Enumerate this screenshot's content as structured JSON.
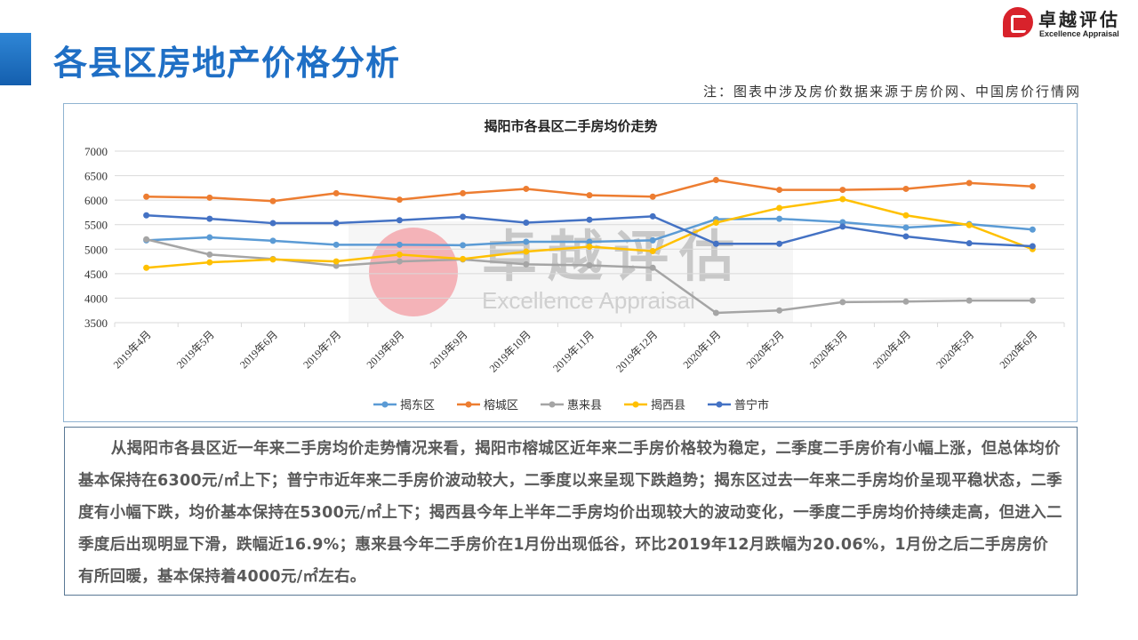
{
  "header": {
    "title": "各县区房地产价格分析",
    "note": "注：图表中涉及房价数据来源于房价网、中国房价行情网",
    "logo_cn": "卓越评估",
    "logo_en": "Excellence Appraisal"
  },
  "watermark": {
    "cn": "卓越评估",
    "en": "Excellence Appraisal"
  },
  "chart_data": {
    "type": "line",
    "title": "揭阳市各县区二手房均价走势",
    "xlabel": "",
    "ylabel": "",
    "ylim": [
      3500,
      7000
    ],
    "yticks": [
      3500,
      4000,
      4500,
      5000,
      5500,
      6000,
      6500,
      7000
    ],
    "grid": true,
    "legend": "bottom",
    "categories": [
      "2019年4月",
      "2019年5月",
      "2019年6月",
      "2019年7月",
      "2019年8月",
      "2019年9月",
      "2019年10月",
      "2019年11月",
      "2019年12月",
      "2020年1月",
      "2020年2月",
      "2020年3月",
      "2020年4月",
      "2020年5月",
      "2020年6月"
    ],
    "series": [
      {
        "name": "揭东区",
        "color": "#5B9BD5",
        "values": [
          5180,
          5240,
          5170,
          5090,
          5090,
          5080,
          5150,
          5150,
          5180,
          5610,
          5620,
          5550,
          5440,
          5510,
          5400
        ]
      },
      {
        "name": "榕城区",
        "color": "#ED7D31",
        "values": [
          6070,
          6050,
          5980,
          6140,
          6010,
          6140,
          6230,
          6100,
          6070,
          6410,
          6210,
          6210,
          6230,
          6350,
          6280
        ]
      },
      {
        "name": "惠来县",
        "color": "#A5A5A5",
        "values": [
          5200,
          4890,
          4800,
          4660,
          4750,
          4790,
          4690,
          4670,
          4620,
          3700,
          3750,
          3920,
          3930,
          3950,
          3950
        ]
      },
      {
        "name": "揭西县",
        "color": "#FFC000",
        "values": [
          4620,
          4730,
          4790,
          4750,
          4890,
          4800,
          4950,
          5050,
          4960,
          5540,
          5840,
          6020,
          5690,
          5490,
          5000
        ]
      },
      {
        "name": "普宁市",
        "color": "#4472C4",
        "values": [
          5690,
          5620,
          5530,
          5530,
          5590,
          5660,
          5540,
          5600,
          5670,
          5110,
          5110,
          5460,
          5260,
          5120,
          5060
        ]
      }
    ]
  },
  "summary": "从揭阳市各县区近一年来二手房均价走势情况来看，揭阳市榕城区近年来二手房价格较为稳定，二季度二手房价有小幅上涨，但总体均价基本保持在6300元/㎡上下；普宁市近年来二手房价波动较大，二季度以来呈现下跌趋势；揭东区过去一年来二手房均价呈现平稳状态，二季度有小幅下跌，均价基本保持在5300元/㎡上下；揭西县今年上半年二手房均价出现较大的波动变化，一季度二手房均价持续走高，但进入二季度后出现明显下滑，跌幅近16.9%；惠来县今年二手房价在1月份出现低谷，环比2019年12月跌幅为20.06%，1月份之后二手房房价有所回暖，基本保持着4000元/㎡左右。"
}
